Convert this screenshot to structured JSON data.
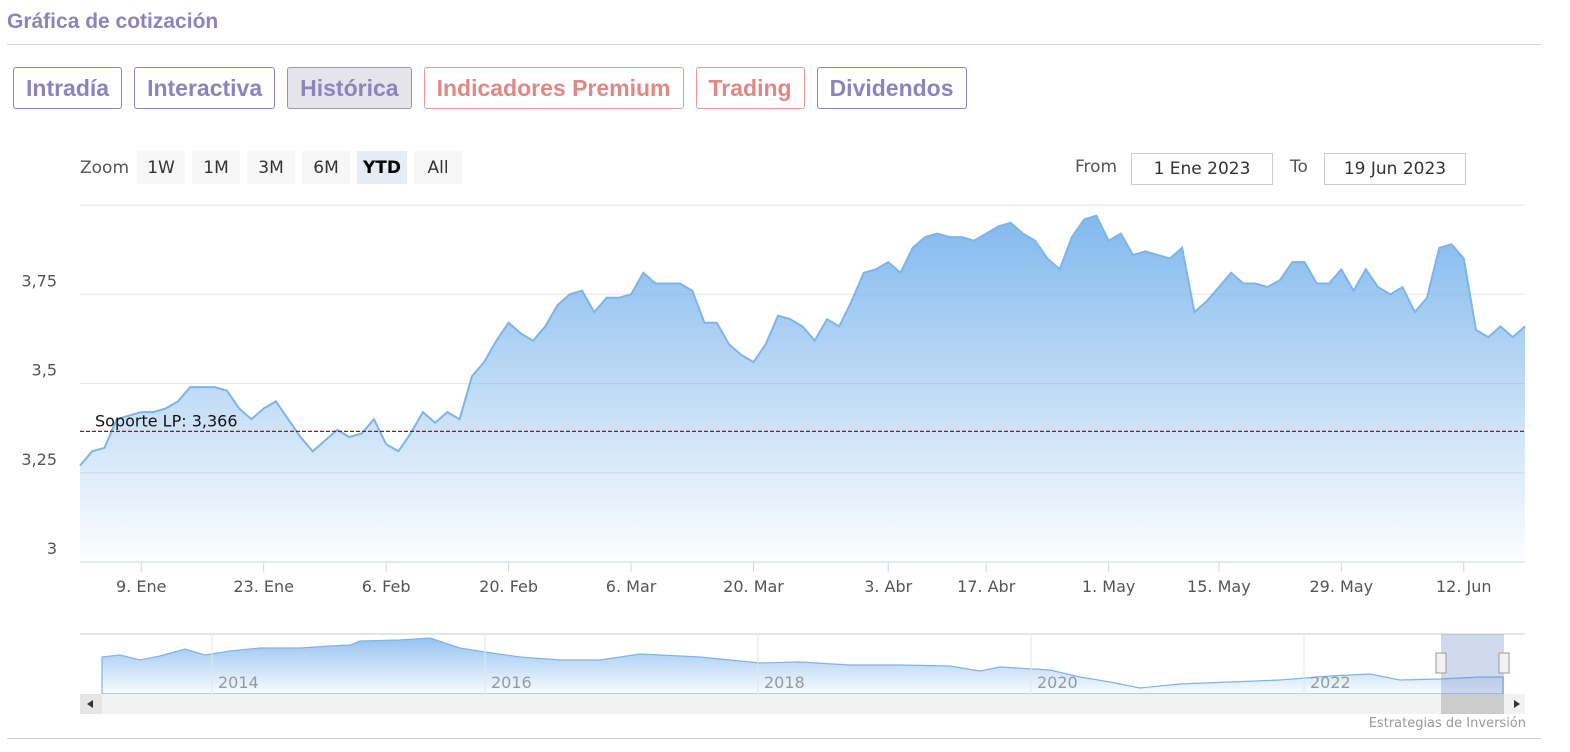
{
  "header": {
    "title": "Gráfica de cotización"
  },
  "tabs": [
    {
      "label": "Intradía",
      "style": "normal"
    },
    {
      "label": "Interactiva",
      "style": "normal"
    },
    {
      "label": "Histórica",
      "style": "active"
    },
    {
      "label": "Indicadores Premium",
      "style": "premium"
    },
    {
      "label": "Trading",
      "style": "premium"
    },
    {
      "label": "Dividendos",
      "style": "normal"
    }
  ],
  "zoom": {
    "label": "Zoom",
    "buttons": [
      "1W",
      "1M",
      "3M",
      "6M",
      "YTD",
      "All"
    ],
    "active": 4
  },
  "range": {
    "from_label": "From",
    "from": "1 Ene 2023",
    "to_label": "To",
    "to": "19 Jun 2023"
  },
  "chart_data": {
    "type": "area",
    "color": "#7cb5ec",
    "categories": [
      null,
      null,
      null,
      null,
      null,
      "9. Ene",
      null,
      null,
      null,
      null,
      null,
      null,
      null,
      null,
      null,
      "23. Ene",
      null,
      null,
      null,
      null,
      null,
      null,
      null,
      null,
      null,
      "6. Feb",
      null,
      null,
      null,
      null,
      null,
      null,
      null,
      null,
      null,
      "20. Feb",
      null,
      null,
      null,
      null,
      null,
      null,
      null,
      null,
      null,
      "6. Mar",
      null,
      null,
      null,
      null,
      null,
      null,
      null,
      null,
      null,
      "20. Mar",
      null,
      null,
      null,
      null,
      null,
      null,
      null,
      null,
      null,
      null,
      "3. Abr",
      null,
      null,
      null,
      null,
      null,
      null,
      null,
      "17. Abr",
      null,
      null,
      null,
      null,
      null,
      null,
      null,
      null,
      null,
      "1. May",
      null,
      null,
      null,
      null,
      null,
      null,
      null,
      null,
      "15. May",
      null,
      null,
      null,
      null,
      null,
      null,
      null,
      null,
      null,
      "29. May",
      null,
      null,
      null,
      null,
      null,
      null,
      null,
      null,
      null,
      "12. Jun",
      null,
      null,
      null,
      null,
      null
    ],
    "values": [
      3.27,
      3.31,
      3.32,
      3.4,
      3.41,
      3.42,
      3.42,
      3.43,
      3.45,
      3.49,
      3.49,
      3.49,
      3.48,
      3.43,
      3.4,
      3.43,
      3.45,
      3.4,
      3.35,
      3.31,
      3.34,
      3.37,
      3.35,
      3.36,
      3.4,
      3.33,
      3.31,
      3.36,
      3.42,
      3.39,
      3.42,
      3.4,
      3.52,
      3.56,
      3.62,
      3.67,
      3.64,
      3.62,
      3.66,
      3.72,
      3.75,
      3.76,
      3.7,
      3.74,
      3.74,
      3.75,
      3.81,
      3.78,
      3.78,
      3.78,
      3.76,
      3.67,
      3.67,
      3.61,
      3.58,
      3.56,
      3.61,
      3.69,
      3.68,
      3.66,
      3.62,
      3.68,
      3.66,
      3.73,
      3.81,
      3.82,
      3.84,
      3.81,
      3.88,
      3.91,
      3.92,
      3.91,
      3.91,
      3.9,
      3.92,
      3.94,
      3.95,
      3.92,
      3.9,
      3.85,
      3.82,
      3.91,
      3.96,
      3.97,
      3.9,
      3.92,
      3.86,
      3.87,
      3.86,
      3.85,
      3.88,
      3.7,
      3.73,
      3.77,
      3.81,
      3.78,
      3.78,
      3.77,
      3.79,
      3.84,
      3.84,
      3.78,
      3.78,
      3.82,
      3.76,
      3.82,
      3.77,
      3.75,
      3.77,
      3.7,
      3.74,
      3.88,
      3.89,
      3.85,
      3.65,
      3.63,
      3.66,
      3.63,
      3.66
    ],
    "ylim": [
      3,
      4
    ],
    "yticks": [
      {
        "value": 3,
        "label": "3"
      },
      {
        "value": 3.25,
        "label": "3,25"
      },
      {
        "value": 3.5,
        "label": "3,5"
      },
      {
        "value": 3.75,
        "label": "3,75"
      }
    ],
    "grid": true,
    "plot_line": {
      "value": 3.366,
      "label": "Soporte LP: 3,366",
      "color": "#8b1a1a"
    }
  },
  "navigator": {
    "labels": [
      "2014",
      "2016",
      "2018",
      "2020",
      "2022"
    ]
  },
  "credit": "Estrategias de Inversión"
}
